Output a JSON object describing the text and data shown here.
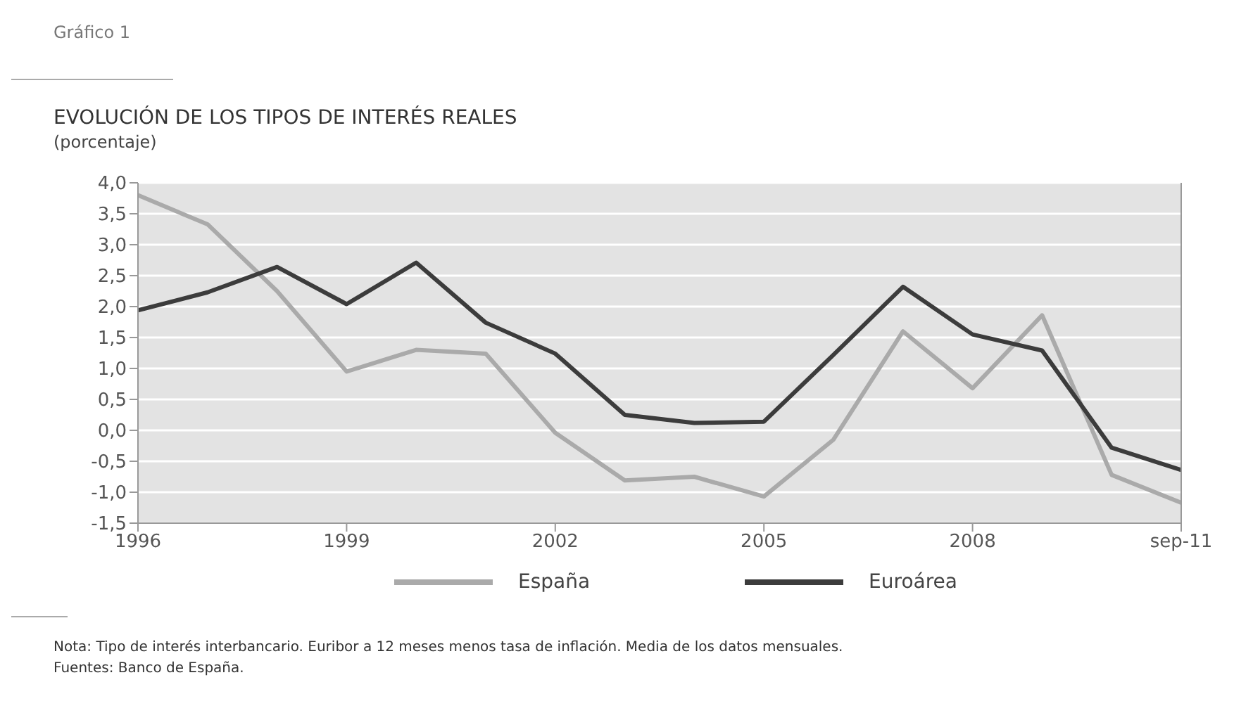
{
  "chart_data": {
    "type": "line",
    "title": "EVOLUCIÓN DE LOS TIPOS DE INTERÉS REALES",
    "subtitle": "(porcentaje)",
    "categories": [
      "1996",
      null,
      null,
      "1999",
      null,
      null,
      "2002",
      null,
      null,
      "2005",
      null,
      null,
      "2008",
      null,
      null,
      "sep-11"
    ],
    "series": [
      {
        "name": "España",
        "color": "#aaaaaa",
        "values": [
          3.8,
          3.33,
          2.25,
          0.95,
          1.3,
          1.24,
          -0.04,
          -0.81,
          -0.75,
          -1.07,
          -0.15,
          1.6,
          0.68,
          1.86,
          -0.72,
          -1.17
        ]
      },
      {
        "name": "Euroárea",
        "color": "#3c3c3c",
        "values": [
          1.94,
          2.23,
          2.64,
          2.04,
          2.71,
          1.74,
          1.24,
          0.25,
          0.12,
          0.14,
          1.22,
          2.32,
          1.55,
          1.29,
          -0.28,
          -0.64
        ]
      }
    ],
    "ylim": [
      -1.5,
      4.0
    ],
    "yticks": [
      {
        "value": -1.5,
        "label": "-1,5"
      },
      {
        "value": -1.0,
        "label": "-1,0"
      },
      {
        "value": -0.5,
        "label": "-0,5"
      },
      {
        "value": 0,
        "label": "0,0"
      },
      {
        "value": 0.5,
        "label": "0,5"
      },
      {
        "value": 1.0,
        "label": "1,0"
      },
      {
        "value": 1.5,
        "label": "1,5"
      },
      {
        "value": 2.0,
        "label": "2,0"
      },
      {
        "value": 2.5,
        "label": "2,5"
      },
      {
        "value": 3.0,
        "label": "3,0"
      },
      {
        "value": 3.5,
        "label": "3,5"
      },
      {
        "value": 4.0,
        "label": "4,0"
      }
    ],
    "grid": "y",
    "legend": "bottom",
    "marker": "none",
    "line_style": "solid",
    "annotations": [
      "Gráfico 1",
      "Nota: Tipo de interés interbancario. Euribor a 12 meses menos tasa de inflación. Media de los datos mensuales.",
      "Fuentes: Banco de España."
    ]
  }
}
